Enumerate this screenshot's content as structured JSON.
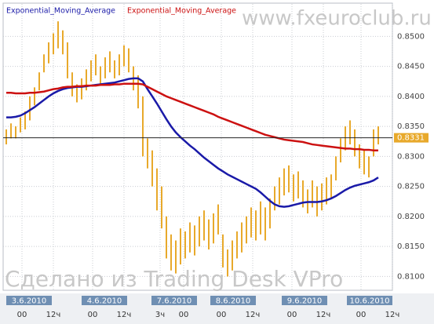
{
  "chart_data": {
    "type": "ohlc",
    "watermark": "www.fxeuroclub.ru",
    "footer_watermark": "Сделано из Trading Desk VPro",
    "color": "#e8a92b",
    "ylim": [
      0.8077,
      0.8554
    ],
    "yticks": [
      {
        "value": 0.85,
        "label": "0.8500"
      },
      {
        "value": 0.845,
        "label": "0.8450"
      },
      {
        "value": 0.84,
        "label": "0.8400"
      },
      {
        "value": 0.835,
        "label": "0.8350"
      },
      {
        "value": 0.83,
        "label": "0.8300"
      },
      {
        "value": 0.825,
        "label": "0.8250"
      },
      {
        "value": 0.82,
        "label": "0.8200"
      },
      {
        "value": 0.815,
        "label": "0.8150"
      },
      {
        "value": 0.81,
        "label": "0.8100"
      }
    ],
    "grid": true,
    "current_price": 0.8331,
    "date_labels": [
      "3.6.2010",
      "4.6.2010",
      "7.6.2010",
      "8.6.2010",
      "9.6.2010",
      "10.6.2010"
    ],
    "time_labels": [
      "00",
      "12ч",
      "00",
      "12ч",
      "3ч",
      "00",
      "00",
      "12ч",
      "00",
      "12ч",
      "00",
      "12ч"
    ],
    "high": [
      0.8345,
      0.8355,
      0.835,
      0.8365,
      0.8375,
      0.84,
      0.8415,
      0.844,
      0.847,
      0.849,
      0.8505,
      0.8525,
      0.851,
      0.849,
      0.844,
      0.842,
      0.843,
      0.8445,
      0.846,
      0.847,
      0.845,
      0.8465,
      0.8475,
      0.846,
      0.847,
      0.8485,
      0.848,
      0.845,
      0.8435,
      0.84,
      0.833,
      0.831,
      0.828,
      0.825,
      0.82,
      0.817,
      0.816,
      0.818,
      0.8175,
      0.819,
      0.8185,
      0.82,
      0.821,
      0.8195,
      0.8205,
      0.822,
      0.817,
      0.8145,
      0.816,
      0.8175,
      0.819,
      0.82,
      0.8215,
      0.821,
      0.8225,
      0.8215,
      0.823,
      0.825,
      0.8265,
      0.828,
      0.8285,
      0.827,
      0.8275,
      0.826,
      0.8245,
      0.826,
      0.825,
      0.8255,
      0.8265,
      0.827,
      0.83,
      0.833,
      0.835,
      0.836,
      0.8345,
      0.832,
      0.831,
      0.83,
      0.8345,
      0.835
    ],
    "low": [
      0.832,
      0.833,
      0.833,
      0.834,
      0.8345,
      0.836,
      0.8385,
      0.841,
      0.844,
      0.8455,
      0.847,
      0.848,
      0.847,
      0.843,
      0.84,
      0.839,
      0.8395,
      0.841,
      0.8425,
      0.8435,
      0.842,
      0.843,
      0.844,
      0.843,
      0.8435,
      0.845,
      0.844,
      0.841,
      0.838,
      0.83,
      0.828,
      0.825,
      0.821,
      0.818,
      0.813,
      0.811,
      0.8105,
      0.812,
      0.813,
      0.814,
      0.8135,
      0.815,
      0.816,
      0.8145,
      0.8155,
      0.817,
      0.8115,
      0.81,
      0.811,
      0.813,
      0.814,
      0.8155,
      0.8165,
      0.816,
      0.817,
      0.816,
      0.818,
      0.821,
      0.822,
      0.8235,
      0.824,
      0.8225,
      0.823,
      0.8215,
      0.8205,
      0.8215,
      0.82,
      0.821,
      0.822,
      0.823,
      0.826,
      0.829,
      0.831,
      0.832,
      0.83,
      0.828,
      0.827,
      0.8265,
      0.83,
      0.832
    ],
    "series": [
      {
        "name": "Exponential_Moving_Average",
        "color": "#1a1aa8",
        "values": [
          0.8365,
          0.8365,
          0.8366,
          0.8368,
          0.8372,
          0.8377,
          0.8382,
          0.8388,
          0.8394,
          0.84,
          0.8405,
          0.8409,
          0.8412,
          0.8414,
          0.8415,
          0.8416,
          0.8416,
          0.8417,
          0.8418,
          0.8419,
          0.842,
          0.8421,
          0.8422,
          0.8423,
          0.8425,
          0.8427,
          0.8429,
          0.843,
          0.843,
          0.8425,
          0.8412,
          0.84,
          0.8388,
          0.8375,
          0.8362,
          0.835,
          0.834,
          0.8332,
          0.8325,
          0.8318,
          0.8312,
          0.8305,
          0.8298,
          0.8292,
          0.8286,
          0.828,
          0.8275,
          0.827,
          0.8266,
          0.8262,
          0.8258,
          0.8254,
          0.825,
          0.8246,
          0.824,
          0.8233,
          0.8226,
          0.822,
          0.8217,
          0.8216,
          0.8217,
          0.8219,
          0.8221,
          0.8223,
          0.8224,
          0.8224,
          0.8224,
          0.8225,
          0.8227,
          0.823,
          0.8234,
          0.8239,
          0.8244,
          0.8248,
          0.8251,
          0.8253,
          0.8255,
          0.8257,
          0.826,
          0.8265
        ]
      },
      {
        "name": "Exponential_Moving_Average",
        "color": "#cc1111",
        "values": [
          0.8406,
          0.8406,
          0.8405,
          0.8405,
          0.8405,
          0.8406,
          0.8406,
          0.8407,
          0.8408,
          0.841,
          0.8412,
          0.8413,
          0.8415,
          0.8416,
          0.8416,
          0.8417,
          0.8417,
          0.8418,
          0.8418,
          0.8418,
          0.8419,
          0.8419,
          0.8419,
          0.842,
          0.842,
          0.8421,
          0.8421,
          0.8421,
          0.8421,
          0.842,
          0.8416,
          0.8412,
          0.8408,
          0.8404,
          0.84,
          0.8397,
          0.8394,
          0.8391,
          0.8388,
          0.8385,
          0.8382,
          0.8379,
          0.8376,
          0.8373,
          0.837,
          0.8366,
          0.8363,
          0.836,
          0.8357,
          0.8354,
          0.8351,
          0.8348,
          0.8345,
          0.8342,
          0.8339,
          0.8336,
          0.8334,
          0.8332,
          0.833,
          0.8328,
          0.8327,
          0.8326,
          0.8325,
          0.8324,
          0.8322,
          0.832,
          0.8319,
          0.8318,
          0.8317,
          0.8316,
          0.8315,
          0.8314,
          0.8313,
          0.8313,
          0.8312,
          0.8312,
          0.8311,
          0.8311,
          0.831,
          0.831
        ]
      }
    ]
  }
}
